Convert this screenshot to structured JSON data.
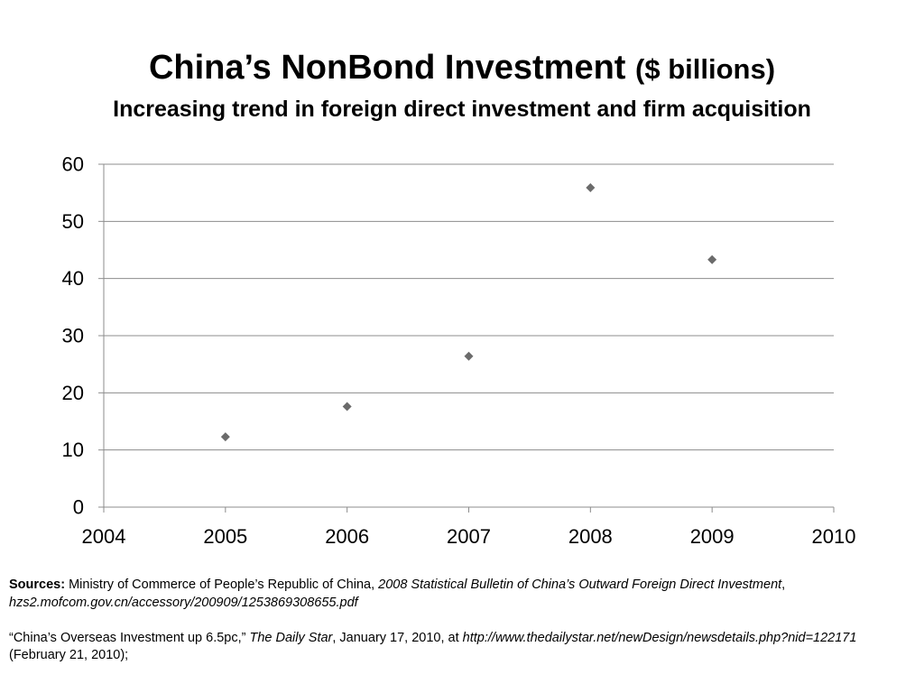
{
  "slide": {
    "title": {
      "main": "China’s NonBond Investment",
      "unit": "($ billions)"
    },
    "subtitle": "Increasing trend in foreign direct investment and firm acquisition"
  },
  "chart_data": {
    "type": "scatter",
    "x": [
      2005,
      2006,
      2007,
      2008,
      2009
    ],
    "y": [
      12.3,
      17.6,
      26.4,
      55.9,
      43.3
    ],
    "xlim": [
      2004,
      2010
    ],
    "ylim": [
      0,
      60
    ],
    "xticks": [
      "2004",
      "2005",
      "2006",
      "2007",
      "2008",
      "2009",
      "2010"
    ],
    "yticks": [
      "0",
      "10",
      "20",
      "30",
      "40",
      "50",
      "60"
    ],
    "grid": true,
    "legend": "none",
    "marker": "diamond",
    "colors": {
      "marker": "#6b6b6b",
      "grid": "#8c8c8c",
      "axis": "#8c8c8c",
      "text": "#000000"
    }
  },
  "sources": {
    "source1": {
      "label": "Sources:",
      "text": " Ministry of Commerce of People’s Republic of China, ",
      "publication": "2008 Statistical Bulletin of China’s Outward Foreign Direct Investment",
      "comma": ", ",
      "url": "hzs2.mofcom.gov.cn/accessory/200909/1253869308655.pdf"
    },
    "source2": {
      "quote": "“China’s Overseas Investment up 6.5pc,” ",
      "publication": "The Daily Star",
      "date": ", January 17, 2010, at ",
      "url": "http://www.thedailystar.net/newDesign/newsdetails.php?nid=122171",
      "accessed": " (February 21, 2010);"
    }
  }
}
